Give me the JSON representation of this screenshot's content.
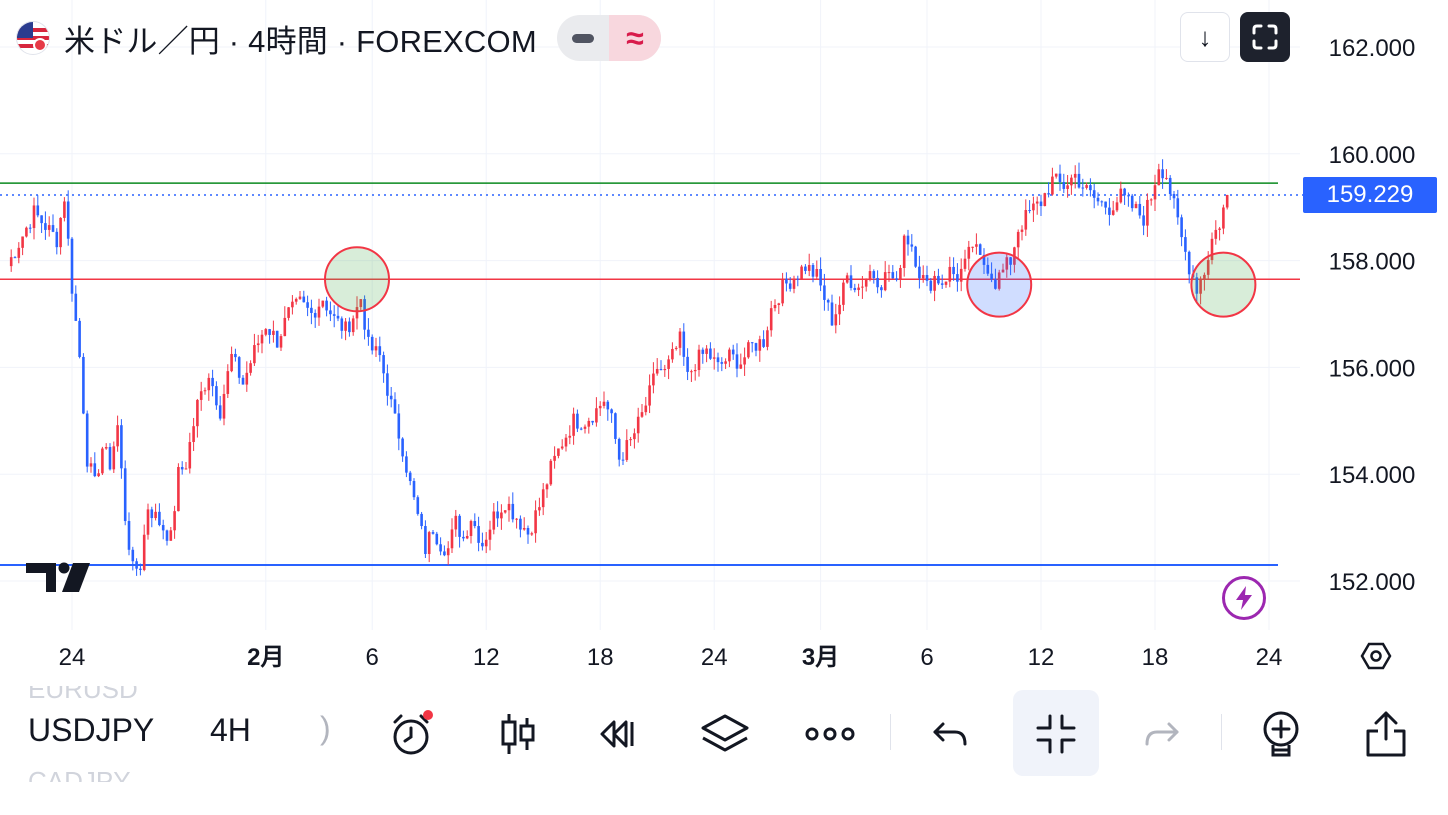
{
  "header": {
    "title": "米ドル／円 · 4時間 · FOREXCOM",
    "wave_symbol": "≈",
    "flag_icon": "usd-jpy-flag-icon"
  },
  "buttons": {
    "down_symbol": "↓"
  },
  "price_scale": {
    "current_price": "159.229",
    "current_price_color": "#2962ff"
  },
  "toolbar": {
    "symbol": "USDJPY",
    "interval": "4H",
    "peek_top": "EURUSD",
    "peek_bottom": "CADJPY",
    "paren": ")"
  },
  "colors": {
    "up": "#f23645",
    "down": "#2962ff",
    "resistance_line": "#f23645",
    "upper_line": "#0a8a1f",
    "support_line": "#2962ff"
  },
  "chart_data": {
    "type": "candlestick",
    "symbol": "USDJPY",
    "timeframe": "4H",
    "ylim": [
      151.0,
      163.0
    ],
    "y_ticks": [
      "162.000",
      "160.000",
      "158.000",
      "156.000",
      "154.000",
      "152.000"
    ],
    "x_ticks": [
      {
        "label": "24",
        "bar": 0
      },
      {
        "label": "2月",
        "bar": 51
      },
      {
        "label": "6",
        "bar": 79
      },
      {
        "label": "12",
        "bar": 109
      },
      {
        "label": "18",
        "bar": 139
      },
      {
        "label": "24",
        "bar": 169
      },
      {
        "label": "3月",
        "bar": 197
      },
      {
        "label": "6",
        "bar": 225
      },
      {
        "label": "12",
        "bar": 255
      },
      {
        "label": "18",
        "bar": 285
      },
      {
        "label": "24",
        "bar": 315
      }
    ],
    "horizontal_lines": [
      {
        "price": 159.45,
        "role": "upper"
      },
      {
        "price": 157.65,
        "role": "resistance"
      },
      {
        "price": 152.3,
        "role": "support"
      }
    ],
    "circle_markers": [
      {
        "bar": 75,
        "price": 157.65,
        "fill": "green"
      },
      {
        "bar": 244,
        "price": 157.55,
        "fill": "blue"
      },
      {
        "bar": 303,
        "price": 157.55,
        "fill": "green"
      }
    ],
    "current_price": 159.229,
    "anchors": [
      [
        -17,
        157.9
      ],
      [
        -10,
        158.9
      ],
      [
        -4,
        158.4
      ],
      [
        -2,
        159.2
      ],
      [
        0,
        157.5
      ],
      [
        2,
        156.2
      ],
      [
        4,
        154.3
      ],
      [
        6,
        153.8
      ],
      [
        8,
        154.5
      ],
      [
        10,
        154.2
      ],
      [
        12,
        154.9
      ],
      [
        14,
        153.2
      ],
      [
        16,
        152.2
      ],
      [
        18,
        152.3
      ],
      [
        20,
        153.4
      ],
      [
        23,
        153.1
      ],
      [
        26,
        152.8
      ],
      [
        28,
        154.0
      ],
      [
        30,
        154.2
      ],
      [
        33,
        155.3
      ],
      [
        36,
        155.9
      ],
      [
        39,
        155.2
      ],
      [
        42,
        156.2
      ],
      [
        45,
        155.7
      ],
      [
        48,
        156.3
      ],
      [
        51,
        156.8
      ],
      [
        54,
        156.5
      ],
      [
        57,
        157.0
      ],
      [
        60,
        157.2
      ],
      [
        63,
        157.0
      ],
      [
        66,
        157.3
      ],
      [
        69,
        156.9
      ],
      [
        72,
        156.7
      ],
      [
        75,
        157.1
      ],
      [
        76,
        157.3
      ],
      [
        78,
        156.4
      ],
      [
        81,
        156.2
      ],
      [
        83,
        155.6
      ],
      [
        85,
        155.0
      ],
      [
        87,
        154.5
      ],
      [
        89,
        153.8
      ],
      [
        91,
        153.2
      ],
      [
        93,
        152.6
      ],
      [
        95,
        153.0
      ],
      [
        97,
        152.7
      ],
      [
        99,
        152.6
      ],
      [
        101,
        153.1
      ],
      [
        103,
        152.8
      ],
      [
        105,
        153.2
      ],
      [
        108,
        152.7
      ],
      [
        111,
        153.2
      ],
      [
        114,
        153.5
      ],
      [
        117,
        153.2
      ],
      [
        120,
        152.9
      ],
      [
        123,
        153.4
      ],
      [
        126,
        154.1
      ],
      [
        129,
        154.6
      ],
      [
        132,
        155.0
      ],
      [
        135,
        155.0
      ],
      [
        138,
        155.2
      ],
      [
        140,
        155.4
      ],
      [
        142,
        155.0
      ],
      [
        144,
        154.3
      ],
      [
        147,
        154.6
      ],
      [
        150,
        155.1
      ],
      [
        152,
        155.5
      ],
      [
        154,
        156.0
      ],
      [
        156,
        155.9
      ],
      [
        158,
        156.2
      ],
      [
        160,
        156.5
      ],
      [
        162,
        155.8
      ],
      [
        164,
        156.1
      ],
      [
        167,
        156.3
      ],
      [
        170,
        156.0
      ],
      [
        173,
        156.2
      ],
      [
        176,
        156.1
      ],
      [
        179,
        156.4
      ],
      [
        182,
        156.5
      ],
      [
        184,
        157.1
      ],
      [
        187,
        157.5
      ],
      [
        190,
        157.7
      ],
      [
        193,
        157.9
      ],
      [
        196,
        157.7
      ],
      [
        198,
        157.3
      ],
      [
        200,
        156.9
      ],
      [
        202,
        157.2
      ],
      [
        204,
        157.7
      ],
      [
        207,
        157.5
      ],
      [
        210,
        157.8
      ],
      [
        213,
        157.6
      ],
      [
        215,
        157.8
      ],
      [
        217,
        157.5
      ],
      [
        219,
        158.5
      ],
      [
        221,
        158.3
      ],
      [
        223,
        157.8
      ],
      [
        225,
        157.5
      ],
      [
        227,
        157.7
      ],
      [
        229,
        157.6
      ],
      [
        231,
        157.8
      ],
      [
        233,
        157.7
      ],
      [
        235,
        157.9
      ],
      [
        237,
        158.3
      ],
      [
        239,
        158.0
      ],
      [
        241,
        157.9
      ],
      [
        243,
        157.6
      ],
      [
        245,
        157.8
      ],
      [
        247,
        158.0
      ],
      [
        249,
        158.6
      ],
      [
        252,
        158.9
      ],
      [
        255,
        159.1
      ],
      [
        258,
        159.5
      ],
      [
        261,
        159.4
      ],
      [
        264,
        159.6
      ],
      [
        267,
        159.3
      ],
      [
        270,
        159.1
      ],
      [
        273,
        159.0
      ],
      [
        276,
        159.2
      ],
      [
        279,
        159.0
      ],
      [
        282,
        158.8
      ],
      [
        284,
        159.2
      ],
      [
        286,
        159.8
      ],
      [
        288,
        159.6
      ],
      [
        290,
        159.0
      ],
      [
        292,
        158.4
      ],
      [
        294,
        157.9
      ],
      [
        296,
        157.5
      ],
      [
        298,
        157.8
      ],
      [
        300,
        158.4
      ],
      [
        302,
        158.7
      ],
      [
        304,
        159.229
      ]
    ]
  }
}
